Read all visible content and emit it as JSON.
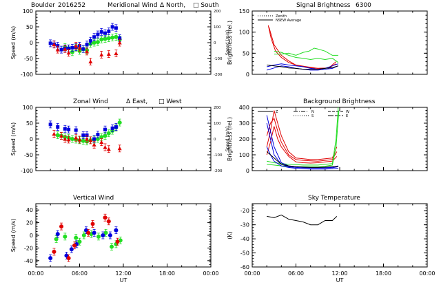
{
  "colors": {
    "red": "#e00000",
    "green": "#22dd22",
    "blue": "#0000dd",
    "black": "#000000"
  },
  "chart_data": [
    {
      "id": "meridional",
      "type": "scatter",
      "title_parts": [
        "Boulder",
        "2016252",
        "Meridional Wind",
        "Δ North,",
        "□ South"
      ],
      "ylabel": "Speed (m/s)",
      "ylabel_right": "Speed (m/s)",
      "ylim": [
        -100,
        100
      ],
      "yticks": [
        -100,
        -50,
        0,
        50,
        100
      ],
      "ylim_right": [
        -200,
        200
      ],
      "yticks_right": [
        -200,
        -100,
        0,
        100,
        200
      ],
      "xlim": [
        0,
        24
      ],
      "series": [
        {
          "color": "green",
          "shape": "circle",
          "x": [
            4.0,
            4.5,
            5.0,
            5.5,
            6.0,
            6.5,
            7.0,
            7.5,
            8.0,
            8.5,
            9.0,
            9.5,
            10.0,
            10.5,
            11.0,
            11.5
          ],
          "y": [
            -14,
            -18,
            -30,
            -16,
            -26,
            -20,
            -24,
            -4,
            0,
            2,
            10,
            12,
            14,
            16,
            18,
            10
          ]
        },
        {
          "color": "blue",
          "shape": "square",
          "x": [
            2.0,
            2.5,
            3.0,
            3.5,
            4.0,
            4.5,
            5.0,
            5.5,
            6.0,
            6.5,
            7.0,
            7.5,
            8.0,
            8.5,
            9.0,
            9.5,
            10.0,
            10.5,
            11.0,
            11.5
          ],
          "y": [
            -2,
            -5,
            -10,
            -22,
            -18,
            -18,
            -16,
            -14,
            -10,
            -20,
            -6,
            6,
            18,
            26,
            34,
            30,
            36,
            50,
            46,
            14
          ]
        },
        {
          "color": "red",
          "shape": "triangle",
          "x": [
            2.5,
            3.0,
            4.0,
            4.5,
            5.5,
            6.0,
            7.0,
            7.5,
            9.0,
            10.0,
            11.0,
            11.5
          ],
          "y": [
            -6,
            -22,
            -20,
            -32,
            -10,
            -16,
            -28,
            -60,
            -38,
            -36,
            -34,
            0
          ]
        }
      ]
    },
    {
      "id": "zonal",
      "type": "scatter",
      "title_parts": [
        "Zonal Wind",
        "Δ East,",
        "□ West"
      ],
      "ylabel": "Speed (m/s)",
      "ylabel_right": "Speed (m/s)",
      "ylim": [
        -100,
        100
      ],
      "yticks": [
        -100,
        -50,
        0,
        50,
        100
      ],
      "ylim_right": [
        -200,
        200
      ],
      "yticks_right": [
        -200,
        -100,
        0,
        100,
        200
      ],
      "xlim": [
        0,
        24
      ],
      "series": [
        {
          "color": "green",
          "shape": "circle",
          "x": [
            3.0,
            3.5,
            4.0,
            4.5,
            5.0,
            5.5,
            6.0,
            6.5,
            7.0,
            7.5,
            8.0,
            8.5,
            9.0,
            9.5,
            10.0,
            10.5,
            11.0,
            11.5
          ],
          "y": [
            12,
            10,
            6,
            4,
            0,
            -2,
            -4,
            -6,
            -8,
            -4,
            -2,
            0,
            6,
            10,
            18,
            26,
            36,
            52
          ]
        },
        {
          "color": "blue",
          "shape": "square",
          "x": [
            2.0,
            3.0,
            4.0,
            4.5,
            5.5,
            6.5,
            7.0,
            8.0,
            8.5,
            9.5,
            10.5,
            11.0
          ],
          "y": [
            46,
            38,
            32,
            30,
            28,
            12,
            12,
            0,
            14,
            30,
            34,
            38
          ]
        },
        {
          "color": "red",
          "shape": "triangle",
          "x": [
            2.5,
            3.5,
            4.0,
            4.5,
            5.5,
            6.0,
            7.0,
            7.5,
            8.0,
            9.0,
            9.5,
            10.0,
            11.5
          ],
          "y": [
            16,
            10,
            0,
            -2,
            4,
            -2,
            0,
            -4,
            -18,
            -10,
            -26,
            -32,
            -30
          ]
        }
      ]
    },
    {
      "id": "vertical",
      "type": "scatter",
      "title_parts": [
        "Vertical Wind"
      ],
      "ylabel": "Speed (m/s)",
      "ylim": [
        -50,
        50
      ],
      "yticks": [
        -40,
        -20,
        0,
        20,
        40
      ],
      "xlim": [
        0,
        24
      ],
      "xticks": [
        "00:00",
        "06:00",
        "12:00",
        "18:00",
        "00:00"
      ],
      "xlabel": "UT",
      "series": [
        {
          "color": "green",
          "shape": "circle",
          "x": [
            2.8,
            4.0,
            5.5,
            6.0,
            6.6,
            7.6,
            8.6,
            9.6,
            10.4,
            11.0,
            11.6
          ],
          "y": [
            -6,
            -2,
            -4,
            -10,
            0,
            2,
            -2,
            4,
            -18,
            -14,
            -8
          ]
        },
        {
          "color": "blue",
          "shape": "circle",
          "x": [
            2.0,
            3.0,
            4.2,
            4.9,
            5.6,
            6.9,
            8.0,
            9.2,
            10.2,
            11.0
          ],
          "y": [
            -36,
            2,
            -32,
            -22,
            -14,
            8,
            4,
            0,
            0,
            8
          ]
        },
        {
          "color": "red",
          "shape": "circle",
          "x": [
            2.5,
            3.5,
            4.5,
            5.3,
            7.2,
            7.8,
            9.5,
            10.0,
            11.2
          ],
          "y": [
            -26,
            14,
            -36,
            -16,
            4,
            18,
            28,
            22,
            -10
          ]
        }
      ]
    },
    {
      "id": "signal",
      "type": "line",
      "title_parts": [
        "Signal Brightness",
        "6300"
      ],
      "ylabel": "Brightness (rel.)",
      "ylim": [
        0,
        150
      ],
      "yticks": [
        0,
        50,
        100,
        150
      ],
      "xlim": [
        0,
        24
      ],
      "legend": [
        "Zenith",
        "NSEW Average"
      ],
      "series": [
        {
          "color": "red",
          "x": [
            2.2,
            2.6,
            3.2,
            4.0,
            5.0,
            6.0,
            7.5,
            9.0,
            10.5,
            11.5
          ],
          "y": [
            116,
            85,
            55,
            40,
            28,
            22,
            18,
            14,
            15,
            25
          ]
        },
        {
          "color": "red",
          "x": [
            2.3,
            3.0,
            4.0,
            5.0,
            6.0,
            7.5,
            9.0,
            10.5,
            11.5
          ],
          "y": [
            112,
            70,
            45,
            32,
            22,
            16,
            14,
            15,
            30
          ]
        },
        {
          "color": "green",
          "x": [
            3.0,
            4.0,
            5.0,
            6.0,
            7.0,
            7.8,
            8.5,
            9.0,
            10.0,
            11.0,
            11.8
          ],
          "y": [
            48,
            48,
            50,
            45,
            52,
            55,
            62,
            60,
            55,
            45,
            45
          ]
        },
        {
          "color": "green",
          "x": [
            3.0,
            4.0,
            5.0,
            6.0,
            7.0,
            8.0,
            9.0,
            10.0,
            11.0,
            11.8
          ],
          "y": [
            55,
            52,
            45,
            40,
            38,
            35,
            38,
            35,
            38,
            28
          ]
        },
        {
          "color": "blue",
          "x": [
            2.0,
            3.0,
            4.0,
            5.0,
            6.0,
            7.0,
            8.0,
            9.0,
            10.0,
            11.0,
            11.8
          ],
          "y": [
            10,
            15,
            20,
            18,
            14,
            12,
            10,
            10,
            12,
            14,
            20
          ]
        },
        {
          "color": "blue",
          "x": [
            2.0,
            3.0,
            4.0,
            5.0,
            6.0,
            7.0,
            8.0,
            9.0,
            10.0,
            11.0,
            11.8
          ],
          "y": [
            18,
            22,
            25,
            22,
            20,
            18,
            14,
            12,
            14,
            20,
            25
          ]
        },
        {
          "color": "black",
          "x": [
            2.0,
            3.0,
            4.0,
            5.0,
            6.0,
            7.0,
            8.0,
            9.0,
            10.0,
            11.0,
            11.8
          ],
          "y": [
            22,
            20,
            18,
            15,
            14,
            12,
            12,
            12,
            14,
            16,
            20
          ]
        }
      ]
    },
    {
      "id": "background",
      "type": "line",
      "title_parts": [
        "Background Brightness"
      ],
      "ylabel": "Brightness (rel.)",
      "ylim": [
        0,
        400
      ],
      "yticks": [
        0,
        100,
        200,
        300,
        400
      ],
      "xlim": [
        0,
        24
      ],
      "legend": [
        "Z",
        "N",
        "S",
        "W",
        "E"
      ],
      "series": [
        {
          "color": "red",
          "x": [
            2.0,
            2.5,
            3.0,
            3.5,
            4.0,
            5.0,
            6.0,
            7.0,
            8.0,
            9.0,
            10.0,
            11.0,
            11.6
          ],
          "y": [
            150,
            250,
            380,
            300,
            220,
            120,
            80,
            75,
            70,
            70,
            75,
            80,
            150
          ]
        },
        {
          "color": "red",
          "x": [
            2.0,
            2.5,
            3.0,
            3.5,
            4.0,
            5.0,
            6.0,
            7.0,
            8.0,
            9.0,
            10.0,
            11.0,
            11.6
          ],
          "y": [
            220,
            300,
            330,
            250,
            180,
            100,
            70,
            65,
            62,
            60,
            65,
            70,
            120
          ]
        },
        {
          "color": "red",
          "x": [
            2.0,
            2.5,
            3.0,
            3.5,
            4.0,
            5.0,
            6.0,
            7.0,
            8.0,
            9.0,
            10.0,
            11.0,
            11.6
          ],
          "y": [
            100,
            180,
            280,
            200,
            150,
            90,
            55,
            50,
            48,
            50,
            55,
            60,
            90
          ]
        },
        {
          "color": "green",
          "x": [
            2.0,
            3.0,
            4.0,
            5.0,
            6.0,
            7.0,
            8.0,
            9.0,
            10.0,
            11.0,
            11.5,
            11.8
          ],
          "y": [
            60,
            50,
            45,
            40,
            38,
            35,
            35,
            35,
            40,
            45,
            200,
            400
          ]
        },
        {
          "color": "green",
          "x": [
            2.0,
            3.0,
            4.0,
            5.0,
            6.0,
            7.0,
            8.0,
            9.0,
            10.0,
            11.0,
            11.5,
            11.9
          ],
          "y": [
            40,
            35,
            30,
            28,
            25,
            25,
            25,
            25,
            28,
            35,
            150,
            380
          ]
        },
        {
          "color": "blue",
          "x": [
            2.0,
            2.5,
            3.0,
            4.0,
            5.0,
            6.0,
            7.0,
            8.0,
            9.0,
            10.0,
            11.0,
            11.8
          ],
          "y": [
            350,
            250,
            150,
            50,
            30,
            25,
            22,
            20,
            20,
            20,
            22,
            30
          ]
        },
        {
          "color": "blue",
          "x": [
            2.0,
            2.5,
            3.0,
            4.0,
            5.0,
            6.0,
            7.0,
            8.0,
            9.0,
            10.0,
            11.0,
            11.8
          ],
          "y": [
            300,
            200,
            100,
            40,
            25,
            20,
            18,
            16,
            16,
            16,
            18,
            25
          ]
        },
        {
          "color": "blue",
          "x": [
            2.0,
            2.5,
            3.0,
            4.0,
            5.0,
            6.0,
            7.0,
            8.0,
            9.0,
            10.0,
            11.0,
            11.8
          ],
          "y": [
            150,
            100,
            60,
            30,
            20,
            15,
            12,
            10,
            10,
            10,
            12,
            15
          ]
        },
        {
          "color": "black",
          "x": [
            2.0,
            3.0,
            4.0,
            5.0,
            6.0,
            7.0,
            8.0,
            9.0,
            10.0,
            11.0,
            11.8
          ],
          "y": [
            120,
            80,
            40,
            30,
            25,
            22,
            20,
            20,
            22,
            25,
            28
          ]
        }
      ]
    },
    {
      "id": "sky",
      "type": "line",
      "title_parts": [
        "Sky Temperature"
      ],
      "ylabel": "(K)",
      "ylim": [
        -60,
        -15
      ],
      "yticks": [
        -60,
        -50,
        -40,
        -30,
        -20
      ],
      "xlim": [
        0,
        24
      ],
      "xticks": [
        "00:00",
        "06:00",
        "12:00",
        "18:00",
        "00:00"
      ],
      "xlabel": "UT",
      "series": [
        {
          "color": "black",
          "x": [
            2.0,
            3.0,
            4.0,
            5.0,
            6.0,
            7.0,
            8.0,
            9.0,
            10.0,
            11.0,
            11.6
          ],
          "y": [
            -24,
            -25,
            -23,
            -26,
            -27,
            -28,
            -30,
            -30,
            -27,
            -27,
            -24
          ]
        }
      ]
    }
  ]
}
